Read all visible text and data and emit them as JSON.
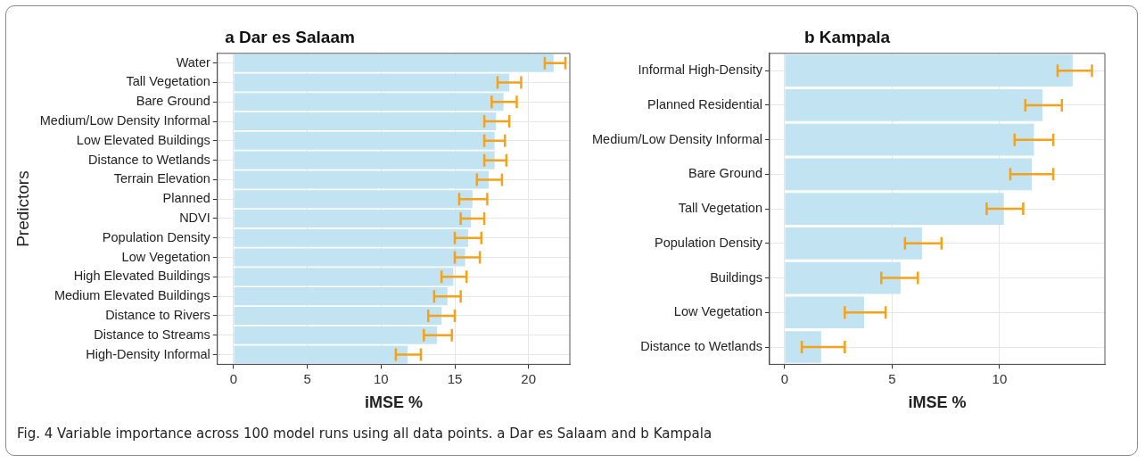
{
  "chart_data": [
    {
      "type": "bar",
      "orientation": "horizontal",
      "title": "a Dar es Salaam",
      "xlabel": "iMSE %",
      "ylabel": "Predictors",
      "categories": [
        "Water",
        "Tall Vegetation",
        "Bare Ground",
        "Medium/Low Density Informal",
        "Low Elevated Buildings",
        "Distance to Wetlands",
        "Terrain Elevation",
        "Planned",
        "NDVI",
        "Population Density",
        "Low Vegetation",
        "High Elevated Buildings",
        "Medium Elevated Buildings",
        "Distance to Rivers",
        "Distance to Streams",
        "High-Density Informal"
      ],
      "series": [
        {
          "color": "#c2e3f2",
          "values": [
            21.7,
            18.7,
            18.3,
            17.8,
            17.7,
            17.7,
            17.3,
            16.2,
            16.1,
            15.9,
            15.7,
            14.9,
            14.5,
            14.1,
            13.8,
            11.8
          ],
          "errors": [
            [
              21.1,
              22.5
            ],
            [
              17.9,
              19.5
            ],
            [
              17.5,
              19.2
            ],
            [
              17.0,
              18.7
            ],
            [
              17.0,
              18.4
            ],
            [
              17.0,
              18.5
            ],
            [
              16.5,
              18.2
            ],
            [
              15.3,
              17.2
            ],
            [
              15.4,
              17.0
            ],
            [
              15.0,
              16.8
            ],
            [
              15.0,
              16.7
            ],
            [
              14.1,
              15.8
            ],
            [
              13.6,
              15.4
            ],
            [
              13.2,
              15.0
            ],
            [
              12.9,
              14.8
            ],
            [
              11.0,
              12.7
            ]
          ]
        }
      ],
      "xlim": [
        -1.1,
        22.8
      ],
      "xticks": [
        0,
        5,
        10,
        15,
        20
      ],
      "grid": true,
      "legend": false,
      "annotations": [
        "Fig. 4 Variable importance across 100 model runs using all data points. a Dar es Salaam and b Kampala"
      ]
    },
    {
      "type": "bar",
      "orientation": "horizontal",
      "title": "b Kampala",
      "xlabel": "iMSE %",
      "categories": [
        "Informal High-Density",
        "Planned Residential",
        "Medium/Low Density Informal",
        "Bare Ground",
        "Tall Vegetation",
        "Population Density",
        "Buildings",
        "Low Vegetation",
        "Distance to Wetlands"
      ],
      "series": [
        {
          "color": "#c2e3f2",
          "values": [
            13.4,
            12.0,
            11.6,
            11.5,
            10.2,
            6.4,
            5.4,
            3.7,
            1.7
          ],
          "errors": [
            [
              12.7,
              14.3
            ],
            [
              11.2,
              12.9
            ],
            [
              10.7,
              12.5
            ],
            [
              10.5,
              12.5
            ],
            [
              9.4,
              11.1
            ],
            [
              5.6,
              7.3
            ],
            [
              4.5,
              6.2
            ],
            [
              2.8,
              4.7
            ],
            [
              0.8,
              2.8
            ]
          ]
        }
      ],
      "xlim": [
        -0.7,
        14.9
      ],
      "xticks": [
        0,
        5,
        10
      ],
      "grid": true,
      "legend": false
    }
  ]
}
